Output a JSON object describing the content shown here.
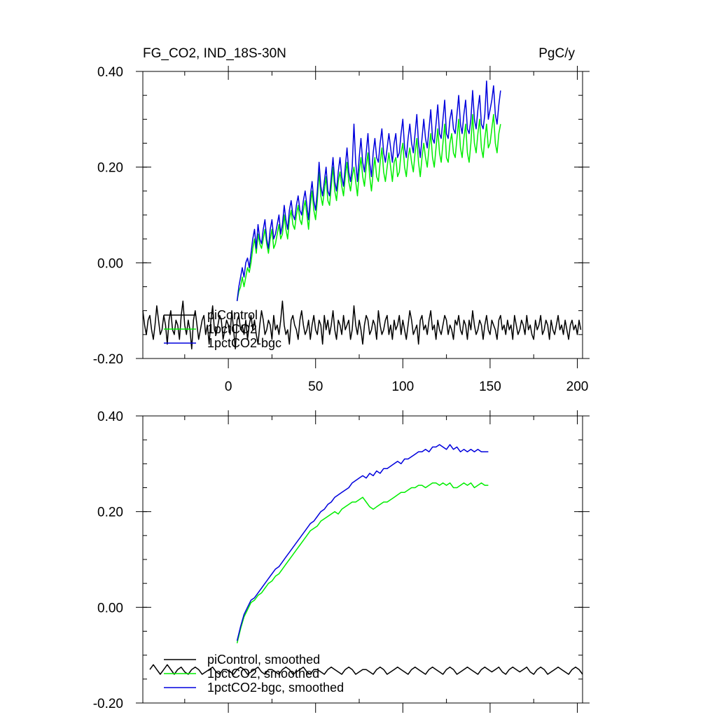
{
  "header": {
    "title": "FG_CO2, IND_18S-30N",
    "units": "PgC/y"
  },
  "colors": {
    "piControl": "#000000",
    "1pctCO2": "#00ee00",
    "1pctCO2-bgc": "#0000dd"
  },
  "chart_data": [
    {
      "type": "line",
      "panel": "raw",
      "title": "FG_CO2, IND_18S-30N",
      "units_label": "PgC/y",
      "xlabel": "",
      "ylabel": "",
      "xlim": [
        -49,
        203
      ],
      "ylim": [
        -0.2,
        0.4
      ],
      "xticks": [
        0,
        50,
        100,
        150,
        200
      ],
      "xtick_labels": [
        "0",
        "50",
        "100",
        "150",
        "200"
      ],
      "yticks": [
        -0.2,
        0.0,
        0.2,
        0.4
      ],
      "ytick_labels": [
        "-0.20",
        "0.00",
        "0.20",
        "0.40"
      ],
      "legend": [
        "piControl",
        "1pctCO2",
        "1pctCO2-bgc"
      ],
      "legend_position": "lower-left",
      "series": [
        {
          "name": "piControl",
          "color": "#000000",
          "x_start": -49,
          "x_step": 1,
          "values": [
            -0.1,
            -0.13,
            -0.15,
            -0.12,
            -0.11,
            -0.14,
            -0.16,
            -0.13,
            -0.09,
            -0.12,
            -0.15,
            -0.14,
            -0.11,
            -0.13,
            -0.17,
            -0.12,
            -0.1,
            -0.14,
            -0.15,
            -0.12,
            -0.13,
            -0.16,
            -0.11,
            -0.08,
            -0.13,
            -0.15,
            -0.12,
            -0.14,
            -0.18,
            -0.12,
            -0.1,
            -0.13,
            -0.16,
            -0.14,
            -0.12,
            -0.11,
            -0.15,
            -0.13,
            -0.17,
            -0.12,
            -0.09,
            -0.14,
            -0.15,
            -0.13,
            -0.11,
            -0.12,
            -0.16,
            -0.14,
            -0.12,
            -0.13,
            -0.15,
            -0.1,
            -0.14,
            -0.18,
            -0.12,
            -0.11,
            -0.14,
            -0.13,
            -0.15,
            -0.12,
            -0.16,
            -0.13,
            -0.11,
            -0.14,
            -0.12,
            -0.15,
            -0.17,
            -0.13,
            -0.1,
            -0.12,
            -0.15,
            -0.14,
            -0.12,
            -0.13,
            -0.16,
            -0.11,
            -0.14,
            -0.13,
            -0.15,
            -0.12,
            -0.08,
            -0.13,
            -0.15,
            -0.14,
            -0.17,
            -0.12,
            -0.11,
            -0.13,
            -0.14,
            -0.16,
            -0.12,
            -0.1,
            -0.13,
            -0.15,
            -0.14,
            -0.12,
            -0.16,
            -0.13,
            -0.11,
            -0.14,
            -0.15,
            -0.12,
            -0.13,
            -0.17,
            -0.11,
            -0.14,
            -0.12,
            -0.15,
            -0.13,
            -0.1,
            -0.14,
            -0.16,
            -0.12,
            -0.13,
            -0.15,
            -0.11,
            -0.14,
            -0.13,
            -0.12,
            -0.16,
            -0.14,
            -0.09,
            -0.13,
            -0.15,
            -0.12,
            -0.14,
            -0.17,
            -0.13,
            -0.11,
            -0.12,
            -0.15,
            -0.14,
            -0.12,
            -0.13,
            -0.16,
            -0.1,
            -0.13,
            -0.15,
            -0.14,
            -0.12,
            -0.11,
            -0.15,
            -0.13,
            -0.16,
            -0.12,
            -0.14,
            -0.13,
            -0.11,
            -0.15,
            -0.12,
            -0.14,
            -0.16,
            -0.13,
            -0.1,
            -0.12,
            -0.15,
            -0.14,
            -0.13,
            -0.17,
            -0.12,
            -0.11,
            -0.14,
            -0.13,
            -0.15,
            -0.12,
            -0.1,
            -0.14,
            -0.13,
            -0.16,
            -0.12,
            -0.14,
            -0.15,
            -0.13,
            -0.11,
            -0.12,
            -0.15,
            -0.13,
            -0.14,
            -0.16,
            -0.12,
            -0.13,
            -0.11,
            -0.14,
            -0.15,
            -0.12,
            -0.13,
            -0.16,
            -0.12,
            -0.14,
            -0.1,
            -0.13,
            -0.15,
            -0.14,
            -0.12,
            -0.13,
            -0.16,
            -0.13,
            -0.11,
            -0.14,
            -0.15,
            -0.12,
            -0.13,
            -0.14,
            -0.16,
            -0.12,
            -0.11,
            -0.14,
            -0.13,
            -0.15,
            -0.12,
            -0.14,
            -0.13,
            -0.16,
            -0.11,
            -0.13,
            -0.15,
            -0.14,
            -0.12,
            -0.13,
            -0.15,
            -0.11,
            -0.14,
            -0.13,
            -0.15,
            -0.16,
            -0.12,
            -0.14,
            -0.13,
            -0.11,
            -0.15,
            -0.14,
            -0.12,
            -0.13,
            -0.16,
            -0.12,
            -0.14,
            -0.15,
            -0.13,
            -0.11,
            -0.14,
            -0.13,
            -0.15,
            -0.12,
            -0.14,
            -0.16,
            -0.13,
            -0.12,
            -0.14,
            -0.13,
            -0.15,
            -0.12,
            -0.14
          ]
        },
        {
          "name": "1pctCO2",
          "color": "#00ee00",
          "x_start": 5,
          "x_step": 1,
          "values": [
            -0.08,
            -0.06,
            -0.05,
            -0.03,
            -0.05,
            -0.03,
            -0.01,
            -0.02,
            0.0,
            0.03,
            0.05,
            0.02,
            0.06,
            0.04,
            0.03,
            0.05,
            0.07,
            0.04,
            0.02,
            0.05,
            0.07,
            0.03,
            0.04,
            0.06,
            0.08,
            0.05,
            0.06,
            0.1,
            0.07,
            0.05,
            0.09,
            0.11,
            0.08,
            0.07,
            0.1,
            0.12,
            0.09,
            0.08,
            0.11,
            0.13,
            0.1,
            0.07,
            0.12,
            0.15,
            0.11,
            0.09,
            0.13,
            0.19,
            0.14,
            0.12,
            0.15,
            0.18,
            0.13,
            0.12,
            0.16,
            0.2,
            0.15,
            0.13,
            0.17,
            0.19,
            0.16,
            0.14,
            0.18,
            0.21,
            0.17,
            0.15,
            0.18,
            0.2,
            0.17,
            0.14,
            0.19,
            0.22,
            0.18,
            0.16,
            0.2,
            0.23,
            0.18,
            0.15,
            0.19,
            0.22,
            0.18,
            0.17,
            0.21,
            0.24,
            0.19,
            0.17,
            0.2,
            0.23,
            0.2,
            0.17,
            0.21,
            0.22,
            0.18,
            0.19,
            0.23,
            0.25,
            0.2,
            0.18,
            0.22,
            0.24,
            0.21,
            0.19,
            0.23,
            0.26,
            0.21,
            0.18,
            0.22,
            0.25,
            0.22,
            0.2,
            0.24,
            0.27,
            0.22,
            0.2,
            0.24,
            0.28,
            0.23,
            0.21,
            0.25,
            0.29,
            0.22,
            0.21,
            0.25,
            0.27,
            0.23,
            0.22,
            0.26,
            0.3,
            0.24,
            0.22,
            0.26,
            0.29,
            0.23,
            0.21,
            0.25,
            0.31,
            0.25,
            0.23,
            0.27,
            0.3,
            0.24,
            0.22,
            0.26,
            0.29,
            0.24,
            0.25,
            0.28,
            0.31,
            0.25,
            0.23,
            0.27,
            0.29
          ]
        },
        {
          "name": "1pctCO2-bgc",
          "color": "#0000dd",
          "x_start": 5,
          "x_step": 1,
          "values": [
            -0.08,
            -0.05,
            -0.03,
            -0.01,
            -0.03,
            0.0,
            0.01,
            -0.01,
            0.02,
            0.05,
            0.07,
            0.03,
            0.08,
            0.05,
            0.04,
            0.07,
            0.09,
            0.05,
            0.03,
            0.07,
            0.09,
            0.05,
            0.06,
            0.08,
            0.1,
            0.06,
            0.08,
            0.12,
            0.09,
            0.07,
            0.11,
            0.13,
            0.1,
            0.09,
            0.12,
            0.14,
            0.11,
            0.1,
            0.13,
            0.15,
            0.12,
            0.09,
            0.14,
            0.17,
            0.13,
            0.11,
            0.15,
            0.21,
            0.16,
            0.14,
            0.17,
            0.2,
            0.15,
            0.14,
            0.18,
            0.22,
            0.17,
            0.15,
            0.19,
            0.22,
            0.18,
            0.16,
            0.2,
            0.24,
            0.19,
            0.17,
            0.2,
            0.29,
            0.21,
            0.17,
            0.22,
            0.26,
            0.21,
            0.19,
            0.23,
            0.27,
            0.21,
            0.18,
            0.23,
            0.26,
            0.22,
            0.21,
            0.25,
            0.28,
            0.23,
            0.21,
            0.24,
            0.27,
            0.24,
            0.21,
            0.25,
            0.27,
            0.22,
            0.23,
            0.27,
            0.3,
            0.24,
            0.22,
            0.26,
            0.29,
            0.25,
            0.23,
            0.27,
            0.31,
            0.25,
            0.22,
            0.26,
            0.3,
            0.26,
            0.24,
            0.28,
            0.32,
            0.26,
            0.25,
            0.29,
            0.33,
            0.27,
            0.26,
            0.3,
            0.34,
            0.27,
            0.26,
            0.3,
            0.32,
            0.28,
            0.27,
            0.31,
            0.35,
            0.29,
            0.27,
            0.31,
            0.34,
            0.28,
            0.27,
            0.3,
            0.36,
            0.3,
            0.28,
            0.32,
            0.35,
            0.29,
            0.28,
            0.31,
            0.38,
            0.3,
            0.32,
            0.34,
            0.37,
            0.31,
            0.29,
            0.33,
            0.36
          ]
        }
      ]
    },
    {
      "type": "line",
      "panel": "smoothed",
      "title": "",
      "xlabel": "",
      "ylabel": "",
      "xlim": [
        -49,
        203
      ],
      "ylim": [
        -0.2,
        0.4
      ],
      "xticks": [
        0,
        50,
        100,
        150,
        200
      ],
      "yticks": [
        -0.2,
        0.0,
        0.2,
        0.4
      ],
      "ytick_labels": [
        "-0.20",
        "0.00",
        "0.20",
        "0.40"
      ],
      "legend": [
        "piControl, smoothed",
        "1pctCO2, smoothed",
        "1pctCO2-bgc, smoothed"
      ],
      "legend_position": "lower-left",
      "series": [
        {
          "name": "piControl, smoothed",
          "color": "#000000",
          "x_start": -45,
          "x_step": 2,
          "values": [
            -0.13,
            -0.12,
            -0.13,
            -0.14,
            -0.13,
            -0.12,
            -0.13,
            -0.14,
            -0.13,
            -0.125,
            -0.135,
            -0.14,
            -0.13,
            -0.125,
            -0.13,
            -0.14,
            -0.135,
            -0.13,
            -0.125,
            -0.135,
            -0.14,
            -0.13,
            -0.13,
            -0.135,
            -0.14,
            -0.13,
            -0.125,
            -0.13,
            -0.14,
            -0.135,
            -0.13,
            -0.125,
            -0.135,
            -0.14,
            -0.13,
            -0.13,
            -0.135,
            -0.14,
            -0.13,
            -0.125,
            -0.13,
            -0.14,
            -0.135,
            -0.13,
            -0.125,
            -0.135,
            -0.14,
            -0.13,
            -0.13,
            -0.135,
            -0.14,
            -0.13,
            -0.125,
            -0.13,
            -0.135,
            -0.14,
            -0.13,
            -0.125,
            -0.13,
            -0.14,
            -0.135,
            -0.13,
            -0.13,
            -0.135,
            -0.14,
            -0.13,
            -0.125,
            -0.13,
            -0.14,
            -0.135,
            -0.13,
            -0.125,
            -0.13,
            -0.135,
            -0.14,
            -0.13,
            -0.125,
            -0.13,
            -0.135,
            -0.14,
            -0.13,
            -0.125,
            -0.13,
            -0.135,
            -0.14,
            -0.13,
            -0.125,
            -0.13,
            -0.14,
            -0.135,
            -0.13,
            -0.125,
            -0.13,
            -0.135,
            -0.14,
            -0.13,
            -0.125,
            -0.13,
            -0.135,
            -0.13,
            -0.125,
            -0.135,
            -0.14,
            -0.13,
            -0.125,
            -0.13,
            -0.135,
            -0.13,
            -0.125,
            -0.135,
            -0.14,
            -0.13,
            -0.125,
            -0.13,
            -0.14,
            -0.135,
            -0.13,
            -0.125,
            -0.13,
            -0.135,
            -0.14,
            -0.13,
            -0.125,
            -0.13,
            -0.14
          ]
        },
        {
          "name": "1pctCO2, smoothed",
          "color": "#00ee00",
          "x_start": 5,
          "x_step": 2,
          "values": [
            -0.075,
            -0.045,
            -0.02,
            -0.005,
            0.01,
            0.015,
            0.025,
            0.03,
            0.04,
            0.05,
            0.055,
            0.065,
            0.07,
            0.08,
            0.09,
            0.1,
            0.11,
            0.12,
            0.13,
            0.14,
            0.15,
            0.16,
            0.165,
            0.17,
            0.18,
            0.185,
            0.19,
            0.195,
            0.2,
            0.195,
            0.205,
            0.21,
            0.215,
            0.22,
            0.22,
            0.225,
            0.23,
            0.22,
            0.21,
            0.205,
            0.21,
            0.215,
            0.22,
            0.22,
            0.225,
            0.23,
            0.235,
            0.24,
            0.24,
            0.245,
            0.25,
            0.25,
            0.255,
            0.255,
            0.25,
            0.255,
            0.26,
            0.26,
            0.255,
            0.26,
            0.255,
            0.26,
            0.25,
            0.25,
            0.255,
            0.26,
            0.255,
            0.26,
            0.25,
            0.255,
            0.26,
            0.255,
            0.255
          ]
        },
        {
          "name": "1pctCO2-bgc, smoothed",
          "color": "#0000dd",
          "x_start": 5,
          "x_step": 2,
          "values": [
            -0.07,
            -0.04,
            -0.015,
            0.0,
            0.015,
            0.02,
            0.03,
            0.04,
            0.05,
            0.06,
            0.07,
            0.08,
            0.085,
            0.095,
            0.105,
            0.115,
            0.125,
            0.135,
            0.145,
            0.155,
            0.165,
            0.175,
            0.18,
            0.19,
            0.2,
            0.205,
            0.215,
            0.22,
            0.23,
            0.235,
            0.24,
            0.245,
            0.25,
            0.26,
            0.265,
            0.27,
            0.275,
            0.27,
            0.28,
            0.275,
            0.285,
            0.28,
            0.29,
            0.29,
            0.295,
            0.3,
            0.305,
            0.3,
            0.31,
            0.31,
            0.315,
            0.32,
            0.325,
            0.325,
            0.33,
            0.325,
            0.335,
            0.335,
            0.34,
            0.335,
            0.33,
            0.34,
            0.33,
            0.335,
            0.325,
            0.33,
            0.325,
            0.33,
            0.325,
            0.33,
            0.325,
            0.325,
            0.325
          ]
        }
      ]
    }
  ]
}
